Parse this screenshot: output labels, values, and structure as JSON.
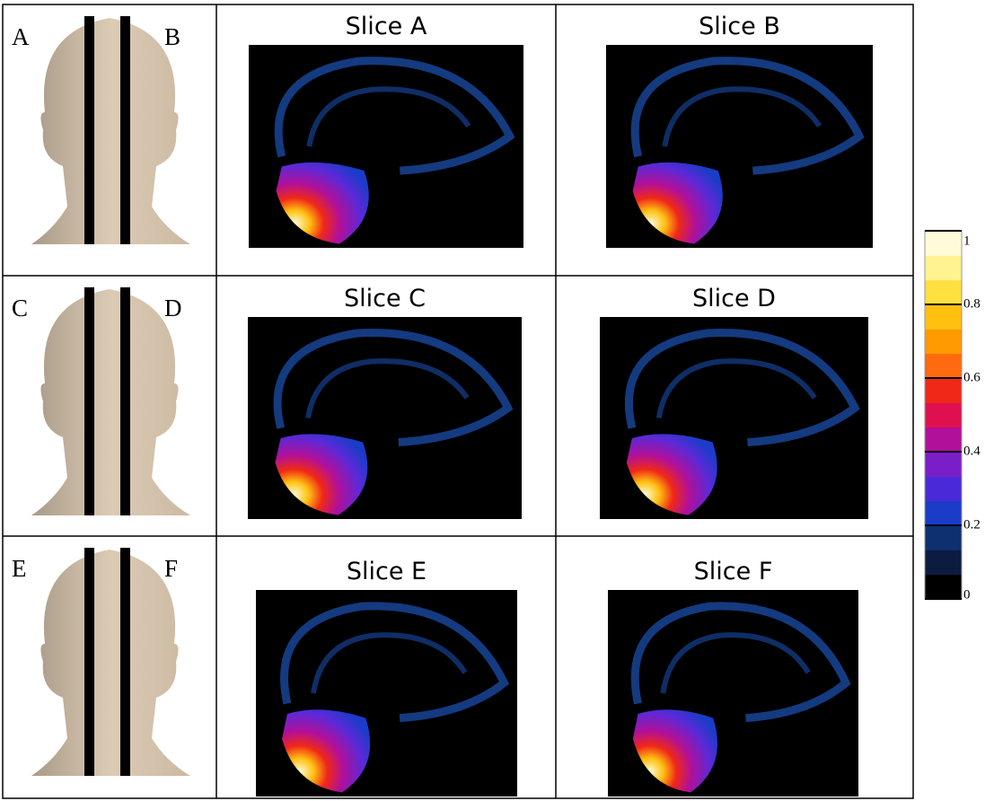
{
  "panels": [
    {
      "labels": [
        "A",
        "B"
      ],
      "slices": [
        "Slice A",
        "Slice B"
      ]
    },
    {
      "labels": [
        "C",
        "D"
      ],
      "slices": [
        "Slice C",
        "Slice D"
      ]
    },
    {
      "labels": [
        "E",
        "F"
      ],
      "slices": [
        "Slice E",
        "Slice F"
      ]
    }
  ],
  "colorbar": {
    "range": [
      0,
      1
    ],
    "ticks": [
      0,
      0.2,
      0.4,
      0.6,
      0.8,
      1
    ],
    "colors": [
      "#000000",
      "#0c1c40",
      "#0e2f70",
      "#1a3cc8",
      "#4a2ad8",
      "#7a1ec8",
      "#b0109a",
      "#e01050",
      "#f02818",
      "#ff6a10",
      "#ff9a00",
      "#ffc010",
      "#ffe040",
      "#fff290",
      "#fffbd8"
    ]
  }
}
